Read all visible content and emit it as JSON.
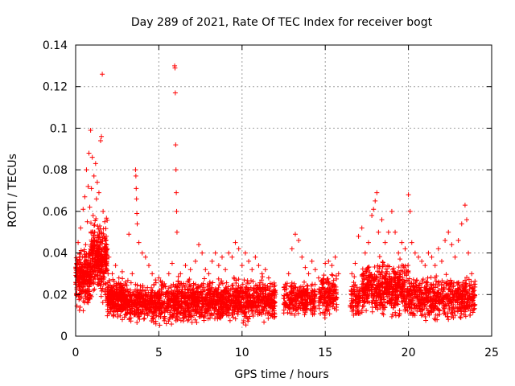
{
  "chart_data": {
    "type": "scatter",
    "title": "Day 289 of 2021, Rate Of TEC Index for receiver bogt",
    "xlabel": "GPS time / hours",
    "ylabel": "ROTI / TECUs",
    "xlim": [
      0,
      25
    ],
    "ylim": [
      0,
      0.14
    ],
    "x_ticks": [
      0,
      5,
      10,
      15,
      20,
      25
    ],
    "x_tick_labels": [
      "0",
      "5",
      "10",
      "15",
      "20",
      "25"
    ],
    "y_ticks": [
      0,
      0.02,
      0.04,
      0.06,
      0.08,
      0.1,
      0.12,
      0.14
    ],
    "y_tick_labels": [
      "0",
      "0.02",
      "0.04",
      "0.06",
      "0.08",
      "0.1",
      "0.12",
      "0.14"
    ],
    "grid": true,
    "marker": "+",
    "color": "#ff0000",
    "series": [
      {
        "points": [
          [
            0.05,
            0.02
          ],
          [
            0.1,
            0.033
          ],
          [
            0.15,
            0.045
          ],
          [
            0.2,
            0.028
          ],
          [
            0.25,
            0.04
          ],
          [
            0.3,
            0.052
          ],
          [
            0.35,
            0.025
          ],
          [
            0.4,
            0.038
          ],
          [
            0.45,
            0.061
          ],
          [
            0.5,
            0.03
          ],
          [
            0.55,
            0.067
          ],
          [
            0.6,
            0.044
          ],
          [
            0.65,
            0.08
          ],
          [
            0.7,
            0.055
          ],
          [
            0.75,
            0.072
          ],
          [
            0.8,
            0.088
          ],
          [
            0.85,
            0.062
          ],
          [
            0.9,
            0.099
          ],
          [
            0.95,
            0.071
          ],
          [
            1.0,
            0.086
          ],
          [
            1.05,
            0.058
          ],
          [
            1.1,
            0.077
          ],
          [
            1.15,
            0.05
          ],
          [
            1.2,
            0.083
          ],
          [
            1.25,
            0.066
          ],
          [
            1.3,
            0.074
          ],
          [
            1.35,
            0.045
          ],
          [
            1.4,
            0.069
          ],
          [
            1.45,
            0.053
          ],
          [
            1.5,
            0.094
          ],
          [
            1.55,
            0.096
          ],
          [
            1.6,
            0.126
          ],
          [
            1.65,
            0.06
          ],
          [
            1.7,
            0.048
          ],
          [
            1.75,
            0.055
          ],
          [
            1.8,
            0.04
          ],
          [
            1.85,
            0.035
          ],
          [
            1.9,
            0.042
          ],
          [
            1.95,
            0.03
          ],
          [
            2.0,
            0.038
          ],
          [
            2.2,
            0.03
          ],
          [
            2.4,
            0.034
          ],
          [
            2.6,
            0.028
          ],
          [
            2.8,
            0.031
          ],
          [
            3.0,
            0.026
          ],
          [
            3.2,
            0.049
          ],
          [
            3.4,
            0.03
          ],
          [
            3.6,
            0.08
          ],
          [
            3.62,
            0.077
          ],
          [
            3.64,
            0.071
          ],
          [
            3.66,
            0.066
          ],
          [
            3.68,
            0.059
          ],
          [
            3.7,
            0.054
          ],
          [
            3.8,
            0.045
          ],
          [
            4.0,
            0.04
          ],
          [
            4.2,
            0.038
          ],
          [
            4.4,
            0.034
          ],
          [
            4.6,
            0.03
          ],
          [
            4.8,
            0.027
          ],
          [
            5.0,
            0.028
          ],
          [
            5.2,
            0.026
          ],
          [
            5.4,
            0.024
          ],
          [
            5.6,
            0.03
          ],
          [
            5.8,
            0.035
          ],
          [
            5.95,
            0.13
          ],
          [
            5.97,
            0.129
          ],
          [
            5.99,
            0.117
          ],
          [
            6.01,
            0.092
          ],
          [
            6.03,
            0.08
          ],
          [
            6.05,
            0.069
          ],
          [
            6.07,
            0.06
          ],
          [
            6.09,
            0.05
          ],
          [
            6.3,
            0.03
          ],
          [
            6.6,
            0.034
          ],
          [
            6.9,
            0.032
          ],
          [
            7.2,
            0.036
          ],
          [
            7.4,
            0.044
          ],
          [
            7.6,
            0.04
          ],
          [
            7.8,
            0.032
          ],
          [
            8.0,
            0.03
          ],
          [
            8.2,
            0.036
          ],
          [
            8.4,
            0.04
          ],
          [
            8.6,
            0.034
          ],
          [
            8.8,
            0.038
          ],
          [
            9.0,
            0.032
          ],
          [
            9.2,
            0.04
          ],
          [
            9.4,
            0.038
          ],
          [
            9.6,
            0.045
          ],
          [
            9.8,
            0.042
          ],
          [
            10.0,
            0.034
          ],
          [
            10.2,
            0.04
          ],
          [
            10.4,
            0.036
          ],
          [
            10.6,
            0.032
          ],
          [
            10.8,
            0.038
          ],
          [
            11.0,
            0.034
          ],
          [
            11.2,
            0.03
          ],
          [
            11.4,
            0.032
          ],
          [
            11.6,
            0.028
          ],
          [
            11.8,
            0.025
          ],
          [
            12.0,
            0.022
          ],
          [
            12.6,
            0.025
          ],
          [
            12.8,
            0.03
          ],
          [
            13.0,
            0.042
          ],
          [
            13.2,
            0.049
          ],
          [
            13.4,
            0.046
          ],
          [
            13.6,
            0.038
          ],
          [
            13.8,
            0.033
          ],
          [
            14.0,
            0.03
          ],
          [
            14.2,
            0.036
          ],
          [
            14.4,
            0.032
          ],
          [
            14.6,
            0.028
          ],
          [
            14.8,
            0.025
          ],
          [
            15.0,
            0.035
          ],
          [
            15.2,
            0.036
          ],
          [
            15.4,
            0.034
          ],
          [
            15.6,
            0.038
          ],
          [
            15.8,
            0.03
          ],
          [
            16.6,
            0.03
          ],
          [
            16.8,
            0.035
          ],
          [
            17.0,
            0.048
          ],
          [
            17.2,
            0.052
          ],
          [
            17.4,
            0.04
          ],
          [
            17.6,
            0.045
          ],
          [
            17.8,
            0.058
          ],
          [
            17.9,
            0.061
          ],
          [
            18.0,
            0.065
          ],
          [
            18.1,
            0.069
          ],
          [
            18.2,
            0.05
          ],
          [
            18.4,
            0.056
          ],
          [
            18.6,
            0.045
          ],
          [
            18.8,
            0.05
          ],
          [
            19.0,
            0.06
          ],
          [
            19.2,
            0.05
          ],
          [
            19.4,
            0.04
          ],
          [
            19.6,
            0.045
          ],
          [
            19.8,
            0.042
          ],
          [
            20.0,
            0.068
          ],
          [
            20.1,
            0.06
          ],
          [
            20.2,
            0.045
          ],
          [
            20.4,
            0.04
          ],
          [
            20.6,
            0.038
          ],
          [
            20.8,
            0.036
          ],
          [
            21.0,
            0.034
          ],
          [
            21.2,
            0.04
          ],
          [
            21.4,
            0.038
          ],
          [
            21.6,
            0.034
          ],
          [
            21.8,
            0.042
          ],
          [
            22.0,
            0.036
          ],
          [
            22.2,
            0.046
          ],
          [
            22.4,
            0.05
          ],
          [
            22.6,
            0.044
          ],
          [
            22.8,
            0.038
          ],
          [
            23.0,
            0.046
          ],
          [
            23.2,
            0.054
          ],
          [
            23.4,
            0.063
          ],
          [
            23.5,
            0.056
          ],
          [
            23.6,
            0.04
          ],
          [
            23.8,
            0.03
          ],
          [
            24.0,
            0.025
          ]
        ],
        "bands": [
          {
            "x_from": 0.0,
            "x_to": 0.9,
            "y_min": 0.01,
            "y_max": 0.045,
            "count": 260
          },
          {
            "x_from": 0.9,
            "x_to": 1.9,
            "y_min": 0.015,
            "y_max": 0.06,
            "count": 320
          },
          {
            "x_from": 1.9,
            "x_to": 3.0,
            "y_min": 0.006,
            "y_max": 0.03,
            "count": 300
          },
          {
            "x_from": 3.0,
            "x_to": 6.0,
            "y_min": 0.004,
            "y_max": 0.028,
            "count": 520
          },
          {
            "x_from": 6.0,
            "x_to": 9.0,
            "y_min": 0.004,
            "y_max": 0.03,
            "count": 560
          },
          {
            "x_from": 9.0,
            "x_to": 12.0,
            "y_min": 0.004,
            "y_max": 0.03,
            "count": 520
          },
          {
            "x_from": 12.5,
            "x_to": 13.5,
            "y_min": 0.008,
            "y_max": 0.028,
            "count": 140
          },
          {
            "x_from": 13.5,
            "x_to": 14.4,
            "y_min": 0.006,
            "y_max": 0.03,
            "count": 150
          },
          {
            "x_from": 14.6,
            "x_to": 15.7,
            "y_min": 0.008,
            "y_max": 0.032,
            "count": 160
          },
          {
            "x_from": 16.5,
            "x_to": 17.1,
            "y_min": 0.006,
            "y_max": 0.03,
            "count": 80
          },
          {
            "x_from": 17.2,
            "x_to": 20.0,
            "y_min": 0.006,
            "y_max": 0.04,
            "count": 520
          },
          {
            "x_from": 20.0,
            "x_to": 24.0,
            "y_min": 0.005,
            "y_max": 0.032,
            "count": 600
          }
        ]
      }
    ]
  }
}
